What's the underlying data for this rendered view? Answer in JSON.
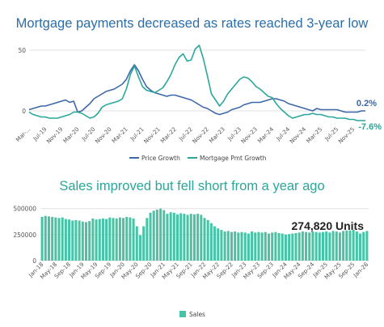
{
  "chart_data": [
    {
      "type": "line",
      "title": "Mortgage payments decreased as rates reached 3-year low",
      "ylim": [
        -12,
        58
      ],
      "yticks": [
        0,
        50
      ],
      "grid": true,
      "legend": "bottom-center",
      "x_tick_labels": [
        "Mar-...",
        "Jul-19",
        "Nov-19",
        "Mar-20",
        "Jul-20",
        "Nov-20",
        "Mar-21",
        "Jul-21",
        "Nov-21",
        "Mar-22",
        "Jul-22",
        "Nov-22",
        "Mar-23",
        "Jul-23",
        "Nov-23",
        "Mar-24",
        "Jul-24",
        "Nov-24",
        "Mar-25",
        "Jul-25",
        "Nov-25"
      ],
      "series": [
        {
          "name": "Price Growth",
          "color": "#3d68a8",
          "end_label": "0.2%",
          "values": [
            1,
            2,
            3,
            4,
            4,
            5,
            6,
            7,
            8,
            9,
            7,
            8,
            -1,
            0,
            3,
            6,
            10,
            12,
            14,
            16,
            17,
            18,
            20,
            22,
            26,
            33,
            38,
            33,
            26,
            20,
            17,
            15,
            14,
            13,
            12,
            13,
            13,
            12,
            11,
            10,
            9,
            7,
            5,
            3,
            2,
            0,
            -2,
            -3,
            -2,
            -1,
            1,
            2,
            3,
            5,
            6,
            7,
            7,
            7,
            8,
            9,
            10,
            10,
            9,
            8,
            6,
            5,
            4,
            3,
            2,
            1,
            0,
            2,
            1,
            1,
            1,
            1,
            1,
            0,
            -1,
            -1,
            -1,
            -1,
            0,
            0
          ]
        },
        {
          "name": "Mortgage Pmt Growth",
          "color": "#2aa79a",
          "end_label": "-7.6%",
          "values": [
            -1,
            -3,
            -4,
            -5,
            -5,
            -6,
            -6,
            -6,
            -5,
            -4,
            -3,
            -1,
            -1,
            -2,
            -4,
            -6,
            -5,
            -2,
            3,
            5,
            6,
            7,
            8,
            10,
            18,
            30,
            37,
            28,
            20,
            17,
            16,
            15,
            17,
            19,
            24,
            30,
            38,
            44,
            47,
            41,
            42,
            51,
            54,
            43,
            29,
            14,
            9,
            4,
            8,
            14,
            18,
            22,
            26,
            28,
            27,
            24,
            20,
            18,
            15,
            12,
            11,
            6,
            2,
            -1,
            -4,
            -6,
            -5,
            -4,
            -3,
            -3,
            -2,
            -3,
            -3,
            -4,
            -5,
            -5,
            -6,
            -6,
            -6,
            -7,
            -7,
            -8,
            -8,
            -8
          ]
        }
      ]
    },
    {
      "type": "bar",
      "title": "Sales improved but fell short from a year ago",
      "ylim": [
        0,
        560000
      ],
      "yticks": [
        0,
        250000,
        500000
      ],
      "ytick_labels": [
        "0",
        "250000",
        "500000"
      ],
      "grid": true,
      "legend": "bottom-center",
      "annotation": "274,820 Units",
      "x_tick_labels": [
        "Jan-18",
        "May-18",
        "Sep-18",
        "Jan-19",
        "May-19",
        "Sep-19",
        "Jan-20",
        "May-20",
        "Sep-20",
        "Jan-21",
        "May-21",
        "Sep-21",
        "Jan-22",
        "May-22",
        "Sep-22",
        "Jan-23",
        "May-23",
        "Sep-23",
        "Jan-24",
        "May-24",
        "Sep-24",
        "Jan-25",
        "May-25",
        "Sep-25",
        "Jan-26"
      ],
      "series": [
        {
          "name": "Sales",
          "color": "#47c4a6",
          "values": [
            420000,
            430000,
            425000,
            420000,
            415000,
            410000,
            415000,
            400000,
            395000,
            385000,
            390000,
            385000,
            375000,
            370000,
            380000,
            405000,
            395000,
            400000,
            405000,
            400000,
            415000,
            410000,
            405000,
            415000,
            410000,
            420000,
            415000,
            405000,
            330000,
            245000,
            330000,
            410000,
            460000,
            480000,
            490000,
            500000,
            485000,
            450000,
            465000,
            460000,
            445000,
            455000,
            450000,
            440000,
            450000,
            445000,
            450000,
            440000,
            410000,
            390000,
            360000,
            330000,
            310000,
            295000,
            280000,
            285000,
            275000,
            280000,
            270000,
            275000,
            270000,
            260000,
            280000,
            270000,
            275000,
            270000,
            275000,
            260000,
            270000,
            275000,
            265000,
            260000,
            250000,
            255000,
            260000,
            265000,
            270000,
            280000,
            275000,
            270000,
            280000,
            275000,
            270000,
            275000,
            280000,
            270000,
            285000,
            280000,
            270000,
            285000,
            290000,
            290000,
            295000,
            280000,
            260000,
            275000,
            285000
          ]
        }
      ]
    }
  ]
}
